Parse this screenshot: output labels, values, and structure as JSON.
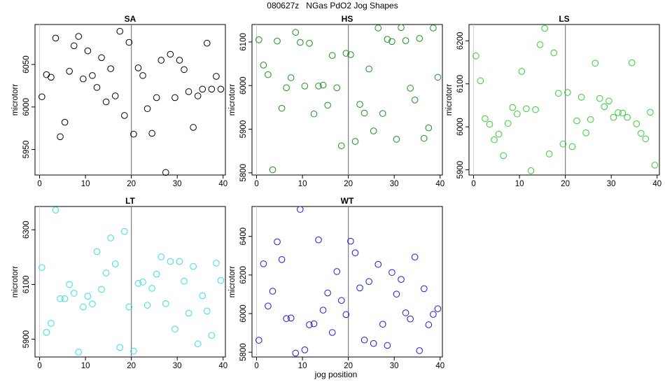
{
  "title": "080627z   NGas PdO2 Jog Shapes",
  "xlabel": "jog position",
  "chart_data": [
    {
      "type": "scatter",
      "title": "SA",
      "ylabel": "microtorr",
      "color": "#000000",
      "xlim": [
        -1,
        40.5
      ],
      "ylim": [
        5920,
        6097
      ],
      "xticks": [
        0,
        10,
        20,
        30,
        40
      ],
      "yticks": [
        5950,
        6000,
        6050
      ],
      "vline": 20,
      "x": [
        0.5,
        1.5,
        2.5,
        3.5,
        4.5,
        5.5,
        6.5,
        7.5,
        8.5,
        9.5,
        10.5,
        11.5,
        12.5,
        13.5,
        14.5,
        15.5,
        16.5,
        17.5,
        18.5,
        19.5,
        20.5,
        21.5,
        22.5,
        23.5,
        24.5,
        25.5,
        26.5,
        27.5,
        28.5,
        29.5,
        30.5,
        31.5,
        32.5,
        33.5,
        34.5,
        35.5,
        36.5,
        37.5,
        38.5,
        39.5
      ],
      "y": [
        6012,
        6038,
        6035,
        6081,
        5965,
        5982,
        6042,
        6072,
        6083,
        6033,
        6066,
        6037,
        6023,
        6058,
        6006,
        6045,
        6013,
        6089,
        5990,
        6076,
        5968,
        6046,
        6037,
        5998,
        5969,
        6011,
        6055,
        5923,
        6062,
        6011,
        6055,
        6044,
        6018,
        5976,
        6013,
        6021,
        6075,
        6021,
        6036,
        6021
      ]
    },
    {
      "type": "scatter",
      "title": "HS",
      "ylabel": "microtorr",
      "color": "#1a8f1a",
      "xlim": [
        -1,
        40.5
      ],
      "ylim": [
        5795,
        6140
      ],
      "xticks": [
        0,
        10,
        20,
        30,
        40
      ],
      "yticks": [
        5800,
        5900,
        6000,
        6100
      ],
      "vline": 20,
      "x": [
        0.5,
        1.5,
        2.5,
        3.5,
        4.5,
        5.5,
        6.5,
        7.5,
        8.5,
        9.5,
        10.5,
        11.5,
        12.5,
        13.5,
        14.5,
        15.5,
        16.5,
        17.5,
        18.5,
        19.5,
        20.5,
        21.5,
        22.5,
        23.5,
        24.5,
        25.5,
        26.5,
        27.5,
        28.5,
        29.5,
        30.5,
        31.5,
        32.5,
        33.5,
        34.5,
        35.5,
        36.5,
        37.5,
        38.5,
        39.5
      ],
      "y": [
        6105,
        6047,
        6025,
        5807,
        6102,
        5948,
        5995,
        6018,
        6122,
        6099,
        5999,
        6097,
        5935,
        5999,
        6001,
        5955,
        6069,
        5995,
        5862,
        6074,
        6071,
        5872,
        5957,
        5937,
        6038,
        5896,
        6132,
        5936,
        6106,
        6101,
        5877,
        6133,
        6103,
        5994,
        5967,
        6108,
        5879,
        5903,
        6132,
        6019
      ]
    },
    {
      "type": "scatter",
      "title": "LS",
      "ylabel": "microtorr",
      "color": "#33cc33",
      "xlim": [
        -1,
        40.5
      ],
      "ylim": [
        5888,
        6238
      ],
      "xticks": [
        0,
        10,
        20,
        30,
        40
      ],
      "yticks": [
        5900,
        6000,
        6100,
        6200
      ],
      "vline": 20,
      "x": [
        0.5,
        1.5,
        2.5,
        3.5,
        4.5,
        5.5,
        6.5,
        7.5,
        8.5,
        9.5,
        10.5,
        11.5,
        12.5,
        13.5,
        14.5,
        15.5,
        16.5,
        17.5,
        18.5,
        19.5,
        20.5,
        21.5,
        22.5,
        23.5,
        24.5,
        25.5,
        26.5,
        27.5,
        28.5,
        29.5,
        30.5,
        31.5,
        32.5,
        33.5,
        34.5,
        35.5,
        36.5,
        37.5,
        38.5,
        39.5
      ],
      "y": [
        6165,
        6107,
        6019,
        6006,
        5970,
        5983,
        5933,
        6008,
        6045,
        6030,
        6129,
        6042,
        5898,
        6040,
        6191,
        6229,
        5937,
        6172,
        6078,
        5960,
        6080,
        5954,
        6014,
        6069,
        5986,
        6017,
        6148,
        6066,
        6047,
        6060,
        6022,
        6033,
        6032,
        6022,
        6149,
        6007,
        5985,
        5972,
        6034,
        5911
      ]
    },
    {
      "type": "scatter",
      "title": "LT",
      "ylabel": "microtorr",
      "color": "#33e0e0",
      "xlim": [
        -1,
        40.5
      ],
      "ylim": [
        5835,
        6385
      ],
      "xticks": [
        0,
        10,
        20,
        30,
        40
      ],
      "yticks": [
        5900,
        6100,
        6300
      ],
      "vline": 20,
      "x": [
        0.5,
        1.5,
        2.5,
        3.5,
        4.5,
        5.5,
        6.5,
        7.5,
        8.5,
        9.5,
        10.5,
        11.5,
        12.5,
        13.5,
        14.5,
        15.5,
        16.5,
        17.5,
        18.5,
        19.5,
        20.5,
        21.5,
        22.5,
        23.5,
        24.5,
        25.5,
        26.5,
        27.5,
        28.5,
        29.5,
        30.5,
        31.5,
        32.5,
        33.5,
        34.5,
        35.5,
        36.5,
        37.5,
        38.5,
        39.5
      ],
      "y": [
        6162,
        5925,
        5958,
        6372,
        6048,
        6048,
        6100,
        6068,
        5853,
        6018,
        6057,
        6029,
        6220,
        6082,
        6142,
        6270,
        6175,
        5870,
        6294,
        6018,
        5856,
        6104,
        6109,
        6024,
        6086,
        6138,
        6201,
        6030,
        6184,
        5937,
        6184,
        6112,
        5995,
        6166,
        5883,
        6059,
        6003,
        5914,
        6178,
        6115
      ]
    },
    {
      "type": "scatter",
      "title": "WT",
      "ylabel": "microtorr",
      "color": "#1a1acc",
      "xlim": [
        -1,
        40.5
      ],
      "ylim": [
        5775,
        6555
      ],
      "xticks": [
        0,
        10,
        20,
        30,
        40
      ],
      "yticks": [
        5800,
        6000,
        6200,
        6400
      ],
      "vline": 20,
      "x": [
        0.5,
        1.5,
        2.5,
        3.5,
        4.5,
        5.5,
        6.5,
        7.5,
        8.5,
        9.5,
        10.5,
        11.5,
        12.5,
        13.5,
        14.5,
        15.5,
        16.5,
        17.5,
        18.5,
        19.5,
        20.5,
        21.5,
        22.5,
        23.5,
        24.5,
        25.5,
        26.5,
        27.5,
        28.5,
        29.5,
        30.5,
        31.5,
        32.5,
        33.5,
        34.5,
        35.5,
        36.5,
        37.5,
        38.5,
        39.5
      ],
      "y": [
        5862,
        6258,
        6039,
        6116,
        6372,
        6280,
        5974,
        5977,
        5795,
        6540,
        5812,
        5942,
        5947,
        6382,
        6018,
        6107,
        5902,
        6218,
        6068,
        5995,
        6375,
        6315,
        6133,
        5863,
        6166,
        5845,
        6255,
        5945,
        5835,
        6213,
        6101,
        6177,
        6004,
        5972,
        6293,
        5808,
        6129,
        5942,
        5996,
        6025
      ]
    }
  ]
}
